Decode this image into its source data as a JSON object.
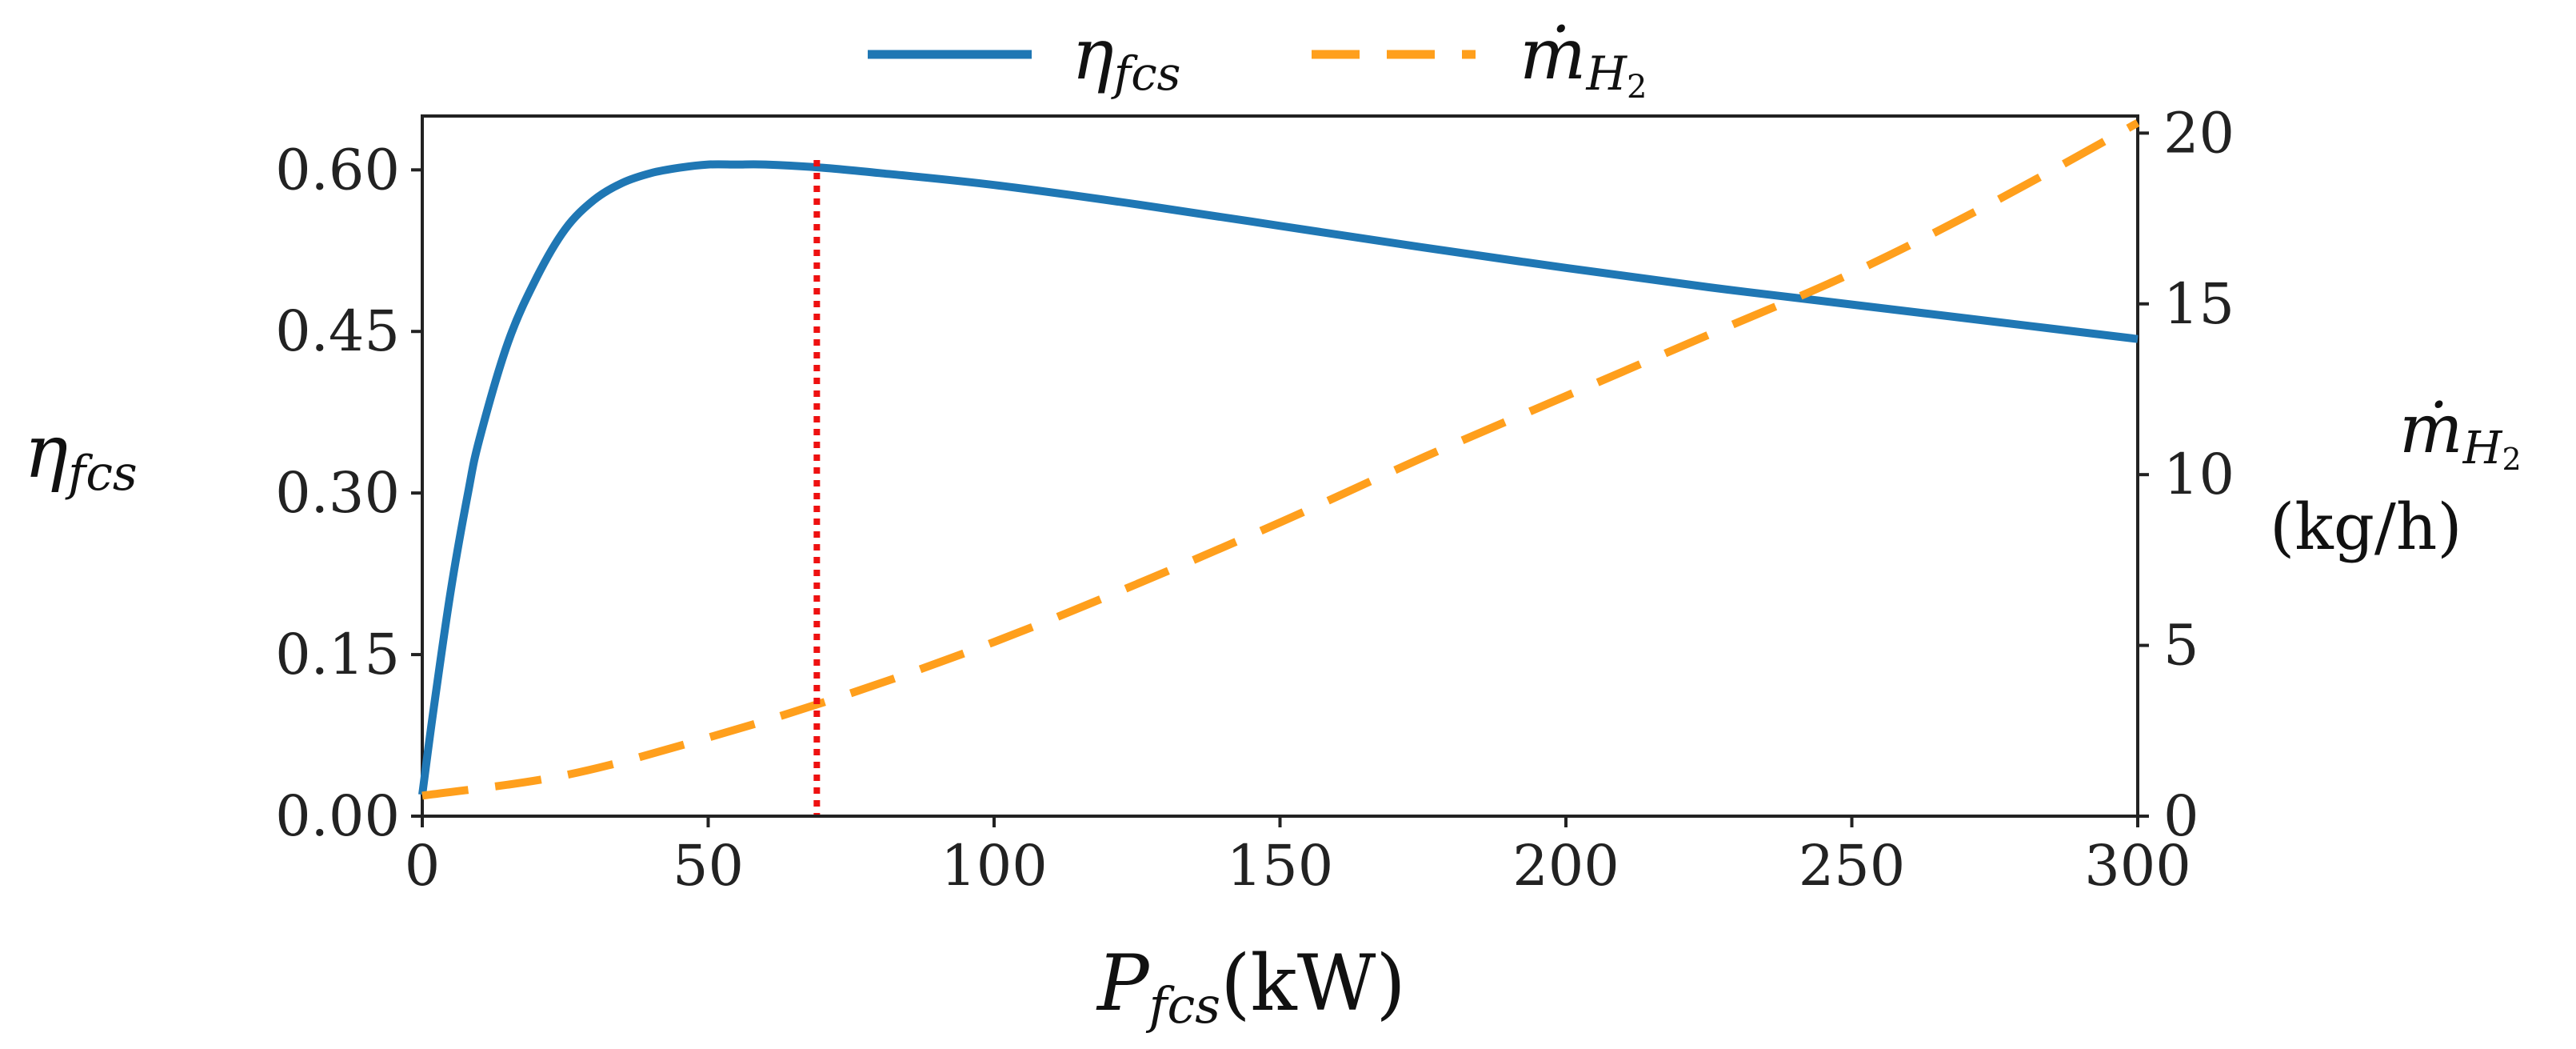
{
  "chart_data": {
    "type": "line",
    "title": "",
    "xlabel": {
      "symbol": "P",
      "subscript": "fcs",
      "unit": "(kW)"
    },
    "ylabel_left": {
      "symbol": "η",
      "subscript": "fcs"
    },
    "ylabel_right": {
      "symbol": "ṁ",
      "subscript": "H",
      "subscript2": "2",
      "unit": "(kg/h)"
    },
    "xlim": [
      0,
      300
    ],
    "ylim_left": [
      0,
      0.65
    ],
    "ylim_right": [
      0,
      20.5
    ],
    "xticks": [
      0,
      50,
      100,
      150,
      200,
      250,
      300
    ],
    "xtick_labels": [
      "0",
      "50",
      "100",
      "150",
      "200",
      "250",
      "300"
    ],
    "yticks_left": [
      0.0,
      0.15,
      0.3,
      0.45,
      0.6
    ],
    "ytick_labels_left": [
      "0.00",
      "0.15",
      "0.30",
      "0.45",
      "0.60"
    ],
    "yticks_right": [
      0,
      5,
      10,
      15,
      20
    ],
    "ytick_labels_right": [
      "0",
      "5",
      "10",
      "15",
      "20"
    ],
    "grid": false,
    "legend_position": "top-center",
    "series": [
      {
        "name": "η_fcs",
        "legend_symbol": "η",
        "legend_subscript": "fcs",
        "axis": "left",
        "color": "#1f77b4",
        "style": "solid",
        "x": [
          0,
          2,
          5,
          8,
          10,
          15,
          20,
          25,
          30,
          35,
          40,
          45,
          50,
          55,
          60,
          70,
          80,
          100,
          125,
          150,
          175,
          200,
          225,
          250,
          275,
          300
        ],
        "y": [
          0.02,
          0.1,
          0.21,
          0.3,
          0.35,
          0.44,
          0.5,
          0.545,
          0.572,
          0.588,
          0.597,
          0.602,
          0.605,
          0.605,
          0.605,
          0.602,
          0.597,
          0.586,
          0.568,
          0.548,
          0.528,
          0.509,
          0.491,
          0.475,
          0.459,
          0.443
        ]
      },
      {
        "name": "ṁ_H2",
        "legend_symbol": "ṁ",
        "legend_subscript": "H",
        "legend_subscript2": "2",
        "axis": "right",
        "color": "#ff9f1c",
        "style": "dashed",
        "x": [
          0,
          25,
          50,
          75,
          100,
          125,
          150,
          175,
          200,
          225,
          250,
          275,
          300
        ],
        "y": [
          0.6,
          1.2,
          2.3,
          3.6,
          5.1,
          6.8,
          8.6,
          10.5,
          12.3,
          14.1,
          15.9,
          18.0,
          20.3
        ]
      }
    ],
    "annotations": [
      {
        "type": "vertical-line",
        "x": 69,
        "color": "#ee1111",
        "style": "dotted"
      }
    ]
  }
}
